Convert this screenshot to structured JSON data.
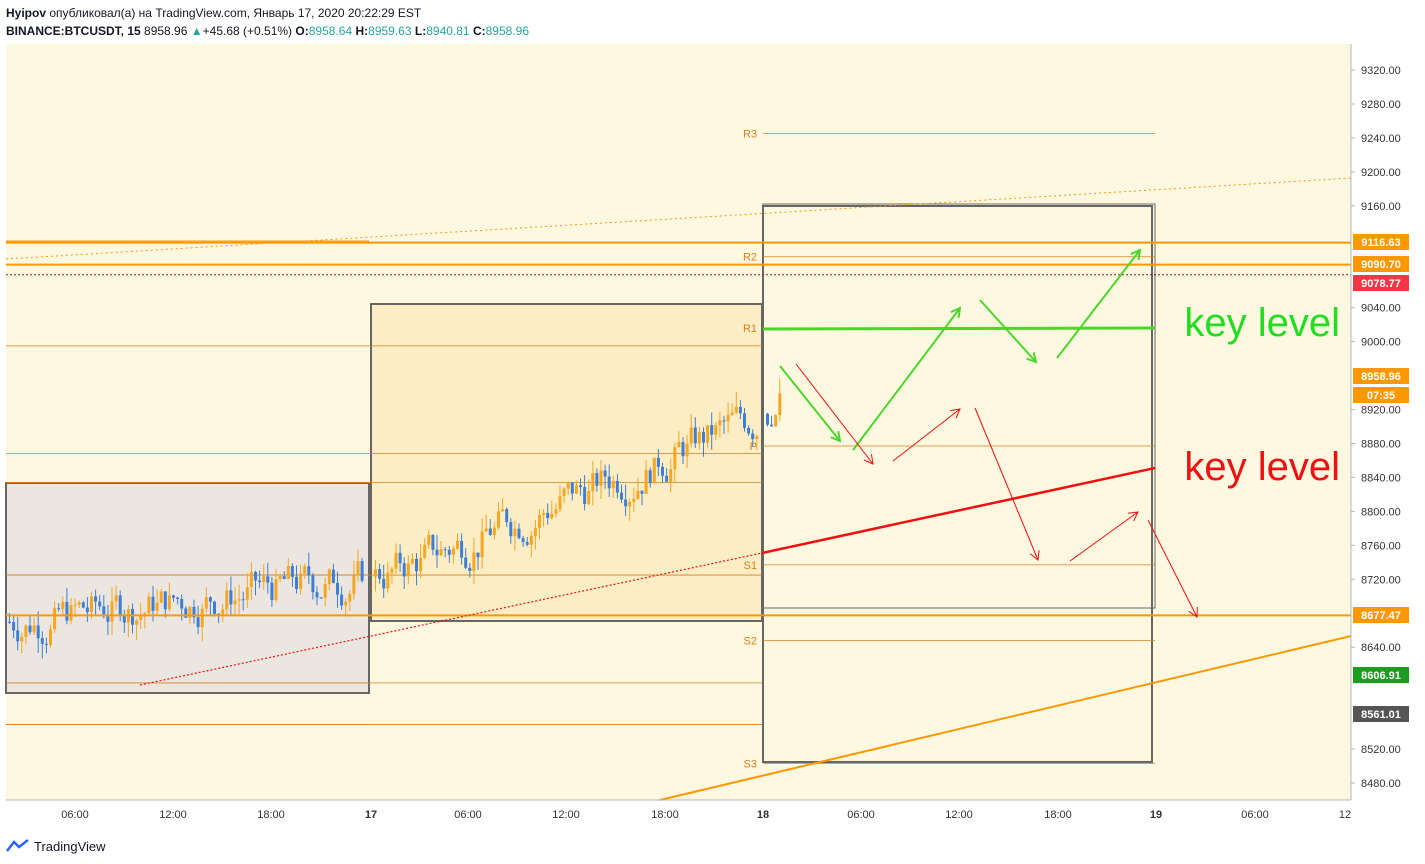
{
  "header": {
    "author": "Hyipov",
    "published_text": "опубликовал(а) на TradingView.com, Январь 17, 2020 20:22:29 EST",
    "symbol": "BINANCE:BTCUSDT, 15",
    "last_price": "8958.96",
    "change": "+45.68 (+0.51%)",
    "open_label": "O:",
    "open": "8958.64",
    "high_label": "H:",
    "high": "8959.63",
    "low_label": "L:",
    "low": "8940.81",
    "close_label": "C:",
    "close": "8958.96"
  },
  "footer": {
    "brand": "TradingView"
  },
  "colors": {
    "background": "#fff8e1",
    "orange": "#ff9800",
    "green": "#4cd62a",
    "red": "#f01010",
    "candle_up": "#f5a623",
    "candle_down": "#3d7fd6",
    "pivot_line": "#d6801f",
    "gray_box": "#666666"
  },
  "chart_data": {
    "type": "candlestick",
    "ylim": [
      8450,
      9345
    ],
    "xlabel": "",
    "ylabel": "",
    "y_ticks": [
      "9320.00",
      "9280.00",
      "9240.00",
      "9200.00",
      "9160.00",
      "9040.00",
      "9000.00",
      "8920.00",
      "8880.00",
      "8840.00",
      "8800.00",
      "8760.00",
      "8720.00",
      "8640.00",
      "8520.00",
      "8480.00"
    ],
    "x_ticks": [
      "06:00",
      "12:00",
      "18:00",
      "17",
      "06:00",
      "12:00",
      "18:00",
      "18",
      "06:00",
      "12:00",
      "18:00",
      "19",
      "06:00",
      "12"
    ],
    "price_tags": [
      {
        "label": "9116.63",
        "value": 9116.63,
        "color": "#ff9800"
      },
      {
        "label": "9090.70",
        "value": 9090.7,
        "color": "#ff9800"
      },
      {
        "label": "9078.77",
        "value": 9078.77,
        "color": "#f23645"
      },
      {
        "label": "8958.96",
        "value": 8958.96,
        "color": "#ff9800"
      },
      {
        "label": "07:35",
        "value": 8938,
        "color": "#ff9800"
      },
      {
        "label": "8677.47",
        "value": 8677.47,
        "color": "#ff9800"
      },
      {
        "label": "8606.91",
        "value": 8606.91,
        "color": "#1b9e20"
      },
      {
        "label": "8561.01",
        "value": 8561.01,
        "color": "#555555"
      }
    ],
    "pivot_sets": [
      {
        "R3": null,
        "R2": null,
        "R1": 8834,
        "P": 8725,
        "S1": 8598,
        "S2": 8549,
        "labels_shown": [
          "R1",
          "P",
          "S1",
          "S2"
        ]
      },
      {
        "R3": 8995,
        "R2": 8868,
        "R1": 8834,
        "P": 8725,
        "S1": 8598,
        "S2": 8549,
        "labels_shown": [
          "R3",
          "R2",
          "R1"
        ]
      },
      {
        "R3": 9245,
        "R2": 9100,
        "R1": 9016,
        "P": 8877,
        "S1": 8737,
        "S2": 8648,
        "S3": 8503,
        "labels_shown": [
          "R3",
          "R2",
          "R1",
          "P",
          "S1",
          "S2",
          "S3"
        ]
      }
    ],
    "annotations": [
      {
        "text": "key level",
        "color": "#22dd22",
        "value": 9016
      },
      {
        "text": "key level",
        "color": "#ee1111",
        "value": 8851
      }
    ],
    "series": [
      {
        "segment": "day-16",
        "open": 8670,
        "close": 8723,
        "low": 8590,
        "high": 8790
      },
      {
        "segment": "day-17",
        "open": 8723,
        "close": 8915,
        "low": 8680,
        "high": 9042
      },
      {
        "segment": "day-18",
        "open": 8915,
        "close": 8958.96,
        "low": 8900,
        "high": 8990
      }
    ]
  }
}
